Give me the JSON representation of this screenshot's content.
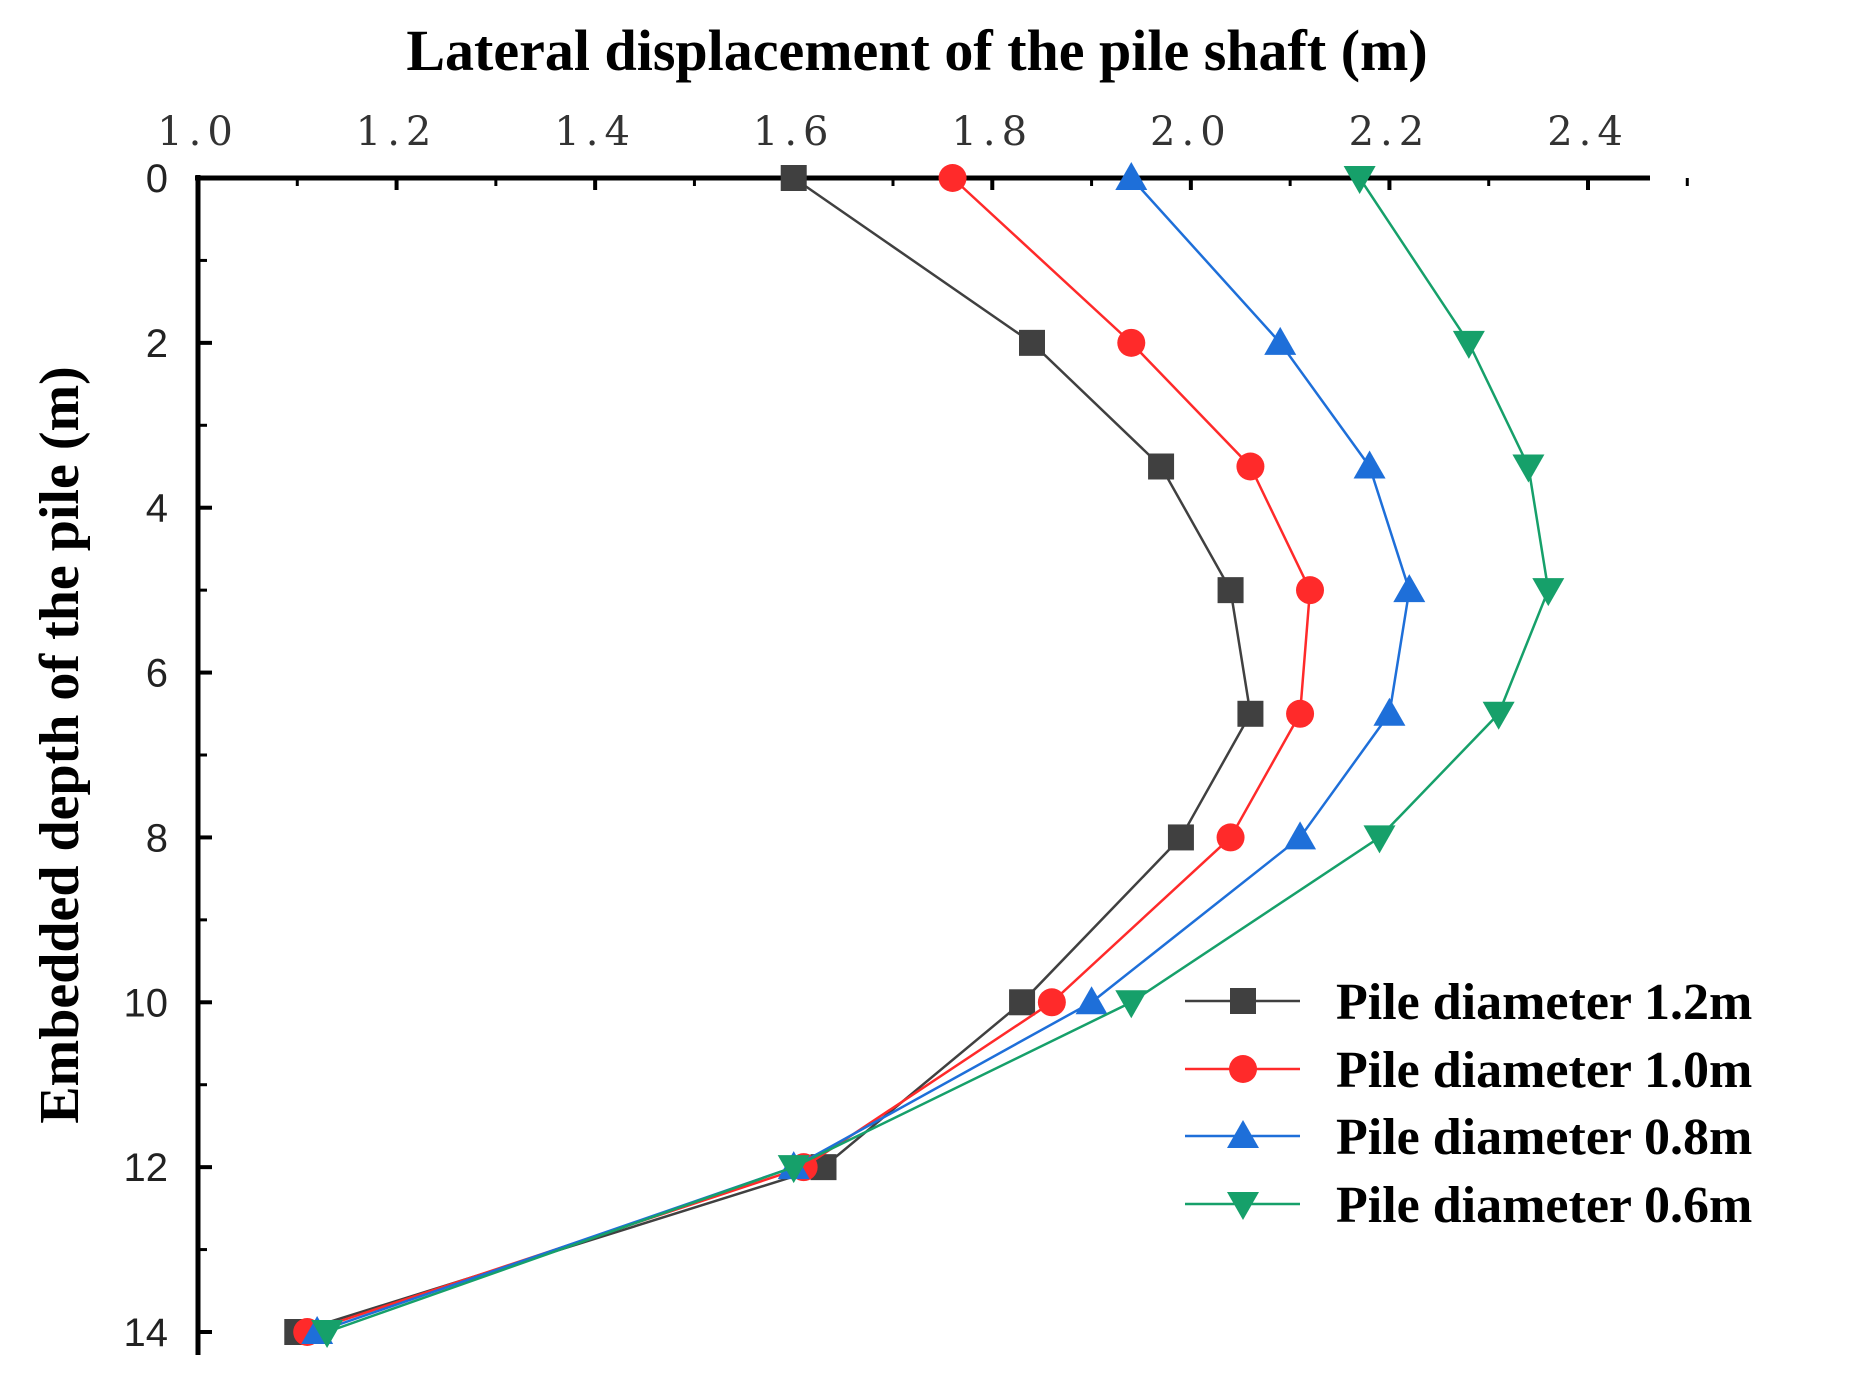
{
  "chart_data": {
    "type": "line",
    "xlabel": "Lateral displacement of the pile shaft (m)",
    "ylabel": "Embedded depth of the pile (m)",
    "xlim": [
      1.0,
      2.5
    ],
    "ylim": [
      0,
      15
    ],
    "y_inverted": true,
    "x_axis_position": "top",
    "x_ticks": [
      "1.0",
      "1.2",
      "1.4",
      "1.6",
      "1.8",
      "2.0",
      "2.2",
      "2.4"
    ],
    "y_ticks": [
      "0",
      "2",
      "4",
      "6",
      "8",
      "10",
      "12",
      "14"
    ],
    "grid": false,
    "legend_position": "bottom-right",
    "series": [
      {
        "name": "Pile diameter 1.2m",
        "color": "#404040",
        "marker": "square",
        "x": [
          1.6,
          1.84,
          1.97,
          2.04,
          2.06,
          1.99,
          1.83,
          1.63,
          1.1
        ],
        "y": [
          0,
          2,
          3.5,
          5,
          6.5,
          8,
          10,
          12,
          14
        ]
      },
      {
        "name": "Pile diameter 1.0m",
        "color": "#ff2a2a",
        "marker": "circle",
        "x": [
          1.76,
          1.94,
          2.06,
          2.12,
          2.11,
          2.04,
          1.86,
          1.61,
          1.11
        ],
        "y": [
          0,
          2,
          3.5,
          5,
          6.5,
          8,
          10,
          12,
          14
        ]
      },
      {
        "name": "Pile diameter 0.8m",
        "color": "#1e6fd9",
        "marker": "triangle-up",
        "x": [
          1.94,
          2.09,
          2.18,
          2.22,
          2.2,
          2.11,
          1.9,
          1.6,
          1.12
        ],
        "y": [
          0,
          2,
          3.5,
          5,
          6.5,
          8,
          10,
          12,
          14
        ]
      },
      {
        "name": "Pile diameter 0.6m",
        "color": "#16a06a",
        "marker": "triangle-down",
        "x": [
          2.17,
          2.28,
          2.34,
          2.36,
          2.31,
          2.19,
          1.94,
          1.6,
          1.13
        ],
        "y": [
          0,
          2,
          3.5,
          5,
          6.5,
          8,
          10,
          12,
          14
        ]
      }
    ]
  }
}
